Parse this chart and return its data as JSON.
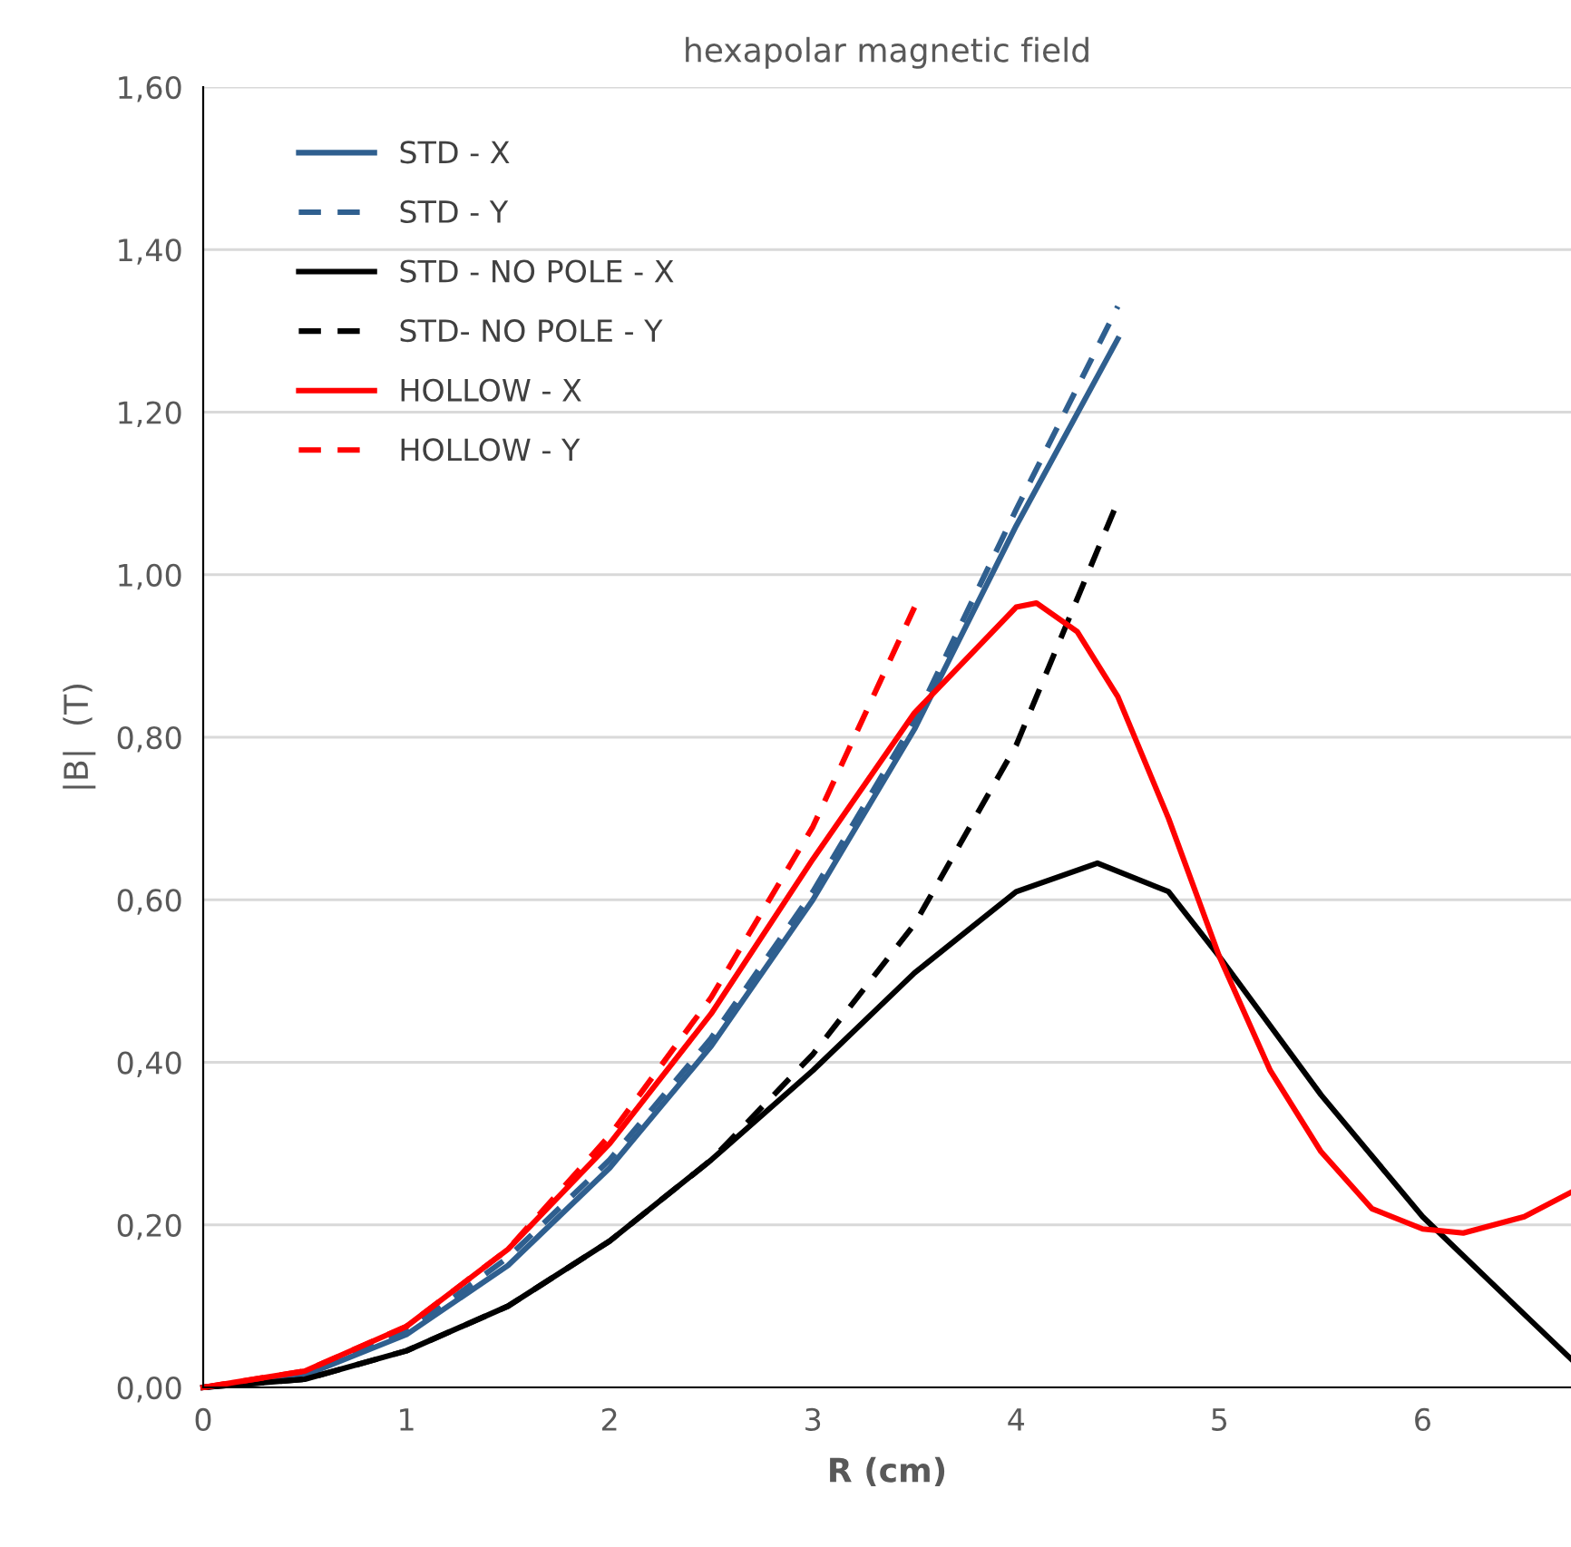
{
  "chart_data": {
    "type": "line",
    "title": "hexapolar magnetic field",
    "xlabel": "R (cm)",
    "ylabel": "|B|  (T)",
    "xlim": [
      0,
      6.73
    ],
    "xticks": [
      0,
      1,
      2,
      3,
      4,
      5,
      6
    ],
    "ylim": [
      0,
      1.6
    ],
    "yticks": [
      {
        "value": 0,
        "label": "0,00"
      },
      {
        "value": 0.2,
        "label": "0,20"
      },
      {
        "value": 0.4,
        "label": "0,40"
      },
      {
        "value": 0.6,
        "label": "0,60"
      },
      {
        "value": 0.8,
        "label": "0,80"
      },
      {
        "value": 1.0,
        "label": "1,00"
      },
      {
        "value": 1.2,
        "label": "1,20"
      },
      {
        "value": 1.4,
        "label": "1,40"
      },
      {
        "value": 1.6,
        "label": "1,60"
      }
    ],
    "grid": "y",
    "legend": "top left",
    "marker": "none",
    "series": [
      {
        "name": "STD - X",
        "color": "#2f5f8f",
        "line_style": "solid",
        "x": [
          0,
          0.5,
          1,
          1.5,
          2,
          2.5,
          3,
          3.5,
          4,
          4.5
        ],
        "values": [
          0,
          0.015,
          0.065,
          0.15,
          0.27,
          0.42,
          0.6,
          0.81,
          1.06,
          1.29
        ]
      },
      {
        "name": "STD - Y",
        "color": "#2f5f8f",
        "line_style": "dashed",
        "x": [
          0,
          0.5,
          1,
          1.5,
          2,
          2.5,
          3,
          3.5,
          4,
          4.5
        ],
        "values": [
          0,
          0.016,
          0.068,
          0.16,
          0.28,
          0.43,
          0.61,
          0.82,
          1.08,
          1.33
        ]
      },
      {
        "name": "STD - NO POLE - X",
        "color": "#000000",
        "line_style": "solid",
        "x": [
          0,
          0.5,
          1,
          1.5,
          2,
          2.5,
          3,
          3.5,
          4,
          4.4,
          4.75,
          5,
          5.5,
          6,
          6.5,
          6.73
        ],
        "values": [
          0,
          0.01,
          0.045,
          0.1,
          0.18,
          0.28,
          0.39,
          0.51,
          0.61,
          0.645,
          0.61,
          0.53,
          0.36,
          0.21,
          0.09,
          0.035
        ]
      },
      {
        "name": "STD- NO POLE - Y",
        "color": "#000000",
        "line_style": "dashed",
        "x": [
          0,
          0.5,
          1,
          1.5,
          2,
          2.5,
          3,
          3.5,
          4,
          4.5
        ],
        "values": [
          0,
          0.01,
          0.045,
          0.1,
          0.18,
          0.28,
          0.41,
          0.57,
          0.79,
          1.09
        ]
      },
      {
        "name": "HOLLOW - X",
        "color": "#ff0000",
        "line_style": "solid",
        "x": [
          0,
          0.5,
          1,
          1.5,
          2,
          2.5,
          3,
          3.5,
          4,
          4.1,
          4.3,
          4.5,
          4.75,
          5,
          5.25,
          5.5,
          5.75,
          6,
          6.2,
          6.5,
          6.73
        ],
        "values": [
          0,
          0.02,
          0.075,
          0.17,
          0.3,
          0.46,
          0.65,
          0.83,
          0.96,
          0.965,
          0.93,
          0.85,
          0.7,
          0.53,
          0.39,
          0.29,
          0.22,
          0.195,
          0.19,
          0.21,
          0.24
        ]
      },
      {
        "name": "HOLLOW - Y",
        "color": "#ff0000",
        "line_style": "dashed",
        "x": [
          0,
          0.5,
          1,
          1.5,
          2,
          2.5,
          3,
          3.5
        ],
        "values": [
          0,
          0.02,
          0.075,
          0.17,
          0.31,
          0.48,
          0.69,
          0.96
        ]
      }
    ]
  }
}
